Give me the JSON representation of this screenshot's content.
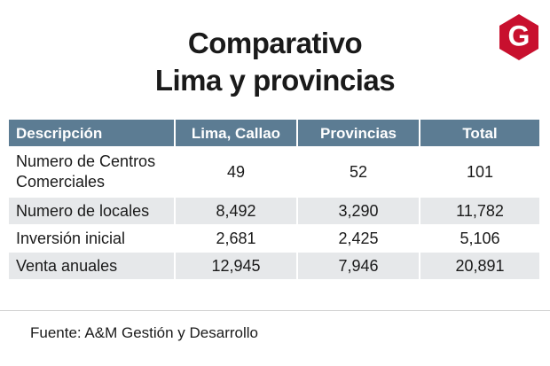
{
  "header": {
    "title_lines": [
      "Comparativo",
      "Lima y provincias"
    ],
    "logo": "G"
  },
  "table": {
    "columns": [
      "Descripción",
      "Lima, Callao",
      "Provincias",
      "Total"
    ],
    "rows": [
      [
        "Numero de Centros Comerciales",
        "49",
        "52",
        "101"
      ],
      [
        "Numero de locales",
        "8,492",
        "3,290",
        "11,782"
      ],
      [
        "Inversión inicial",
        "2,681",
        "2,425",
        "5,106"
      ],
      [
        "Venta anuales",
        "12,945",
        "7,946",
        "20,891"
      ]
    ]
  },
  "footer": {
    "source": "Fuente: A&M Gestión y Desarrollo"
  }
}
